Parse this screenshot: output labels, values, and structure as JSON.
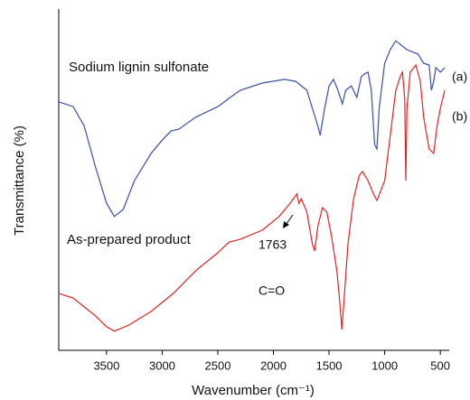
{
  "chart_data": {
    "type": "line",
    "xlabel": "Wavenumber (cm⁻¹)",
    "ylabel": "Transmittance (%)",
    "xlim": [
      3930,
      420
    ],
    "ylim": [
      0,
      100
    ],
    "xticks": [
      3500,
      3000,
      2500,
      2000,
      1500,
      1000,
      500
    ],
    "annotations": [
      "Sodium lignin sulfonate",
      "As-prepared product",
      "1763",
      "C=O",
      "(a)",
      "(b)"
    ],
    "series": [
      {
        "name": "Sodium lignin sulfonate",
        "color": "#3a4fa8",
        "x": [
          3930,
          3800,
          3700,
          3600,
          3500,
          3430,
          3350,
          3250,
          3100,
          3000,
          2920,
          2850,
          2700,
          2500,
          2300,
          2100,
          1900,
          1800,
          1700,
          1650,
          1600,
          1580,
          1540,
          1500,
          1460,
          1420,
          1380,
          1350,
          1300,
          1250,
          1210,
          1180,
          1150,
          1120,
          1090,
          1070,
          1050,
          1000,
          950,
          900,
          850,
          800,
          700,
          650,
          600,
          580,
          560,
          540,
          500,
          460
        ],
        "values": [
          72.8,
          71.4,
          65.6,
          53.7,
          43.1,
          39.2,
          41.3,
          49.7,
          57.7,
          61.6,
          64.3,
          64.8,
          68.3,
          71.4,
          76.2,
          78.3,
          79.4,
          78.8,
          76.2,
          70.9,
          65.6,
          63.0,
          70.9,
          77.5,
          79.4,
          76.2,
          72.2,
          76.2,
          77.5,
          74.1,
          80.2,
          81.0,
          81.5,
          76.2,
          60.3,
          59.0,
          70.9,
          84.1,
          88.1,
          90.7,
          89.4,
          88.1,
          86.8,
          84.1,
          83.6,
          76.2,
          78.8,
          82.8,
          81.5,
          82.8
        ]
      },
      {
        "name": "As-prepared product",
        "color": "#e02424",
        "x": [
          3930,
          3800,
          3700,
          3600,
          3500,
          3430,
          3300,
          3100,
          2900,
          2700,
          2500,
          2400,
          2300,
          2100,
          1950,
          1850,
          1790,
          1770,
          1750,
          1700,
          1650,
          1630,
          1600,
          1560,
          1520,
          1480,
          1430,
          1400,
          1385,
          1370,
          1330,
          1280,
          1230,
          1200,
          1150,
          1100,
          1070,
          1000,
          950,
          900,
          860,
          840,
          820,
          810,
          800,
          770,
          720,
          680,
          650,
          600,
          560,
          530,
          500,
          460
        ],
        "values": [
          16.7,
          15.3,
          12.7,
          10.1,
          6.9,
          5.6,
          7.4,
          11.4,
          16.7,
          23.3,
          28.6,
          31.7,
          32.5,
          35.2,
          39.2,
          43.1,
          45.8,
          43.1,
          44.4,
          40.5,
          31.2,
          29.1,
          36.5,
          41.8,
          40.5,
          33.9,
          23.3,
          12.7,
          6.1,
          12.7,
          31.2,
          44.4,
          51.1,
          52.4,
          49.7,
          45.8,
          43.9,
          49.7,
          63.0,
          76.2,
          80.2,
          81.5,
          73.5,
          49.7,
          70.9,
          81.5,
          83.6,
          78.8,
          68.3,
          59.0,
          57.7,
          65.6,
          70.9,
          76.2
        ]
      }
    ]
  }
}
